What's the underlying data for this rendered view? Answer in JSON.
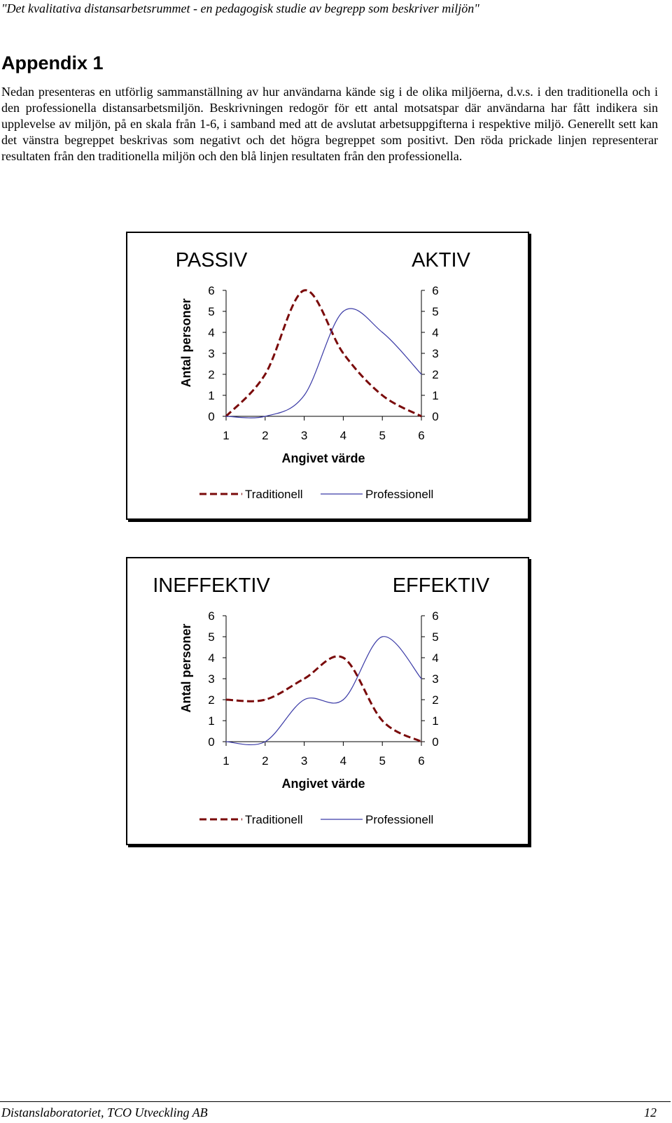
{
  "header": {
    "running_title": "\"Det kvalitativa distansarbetsrummet - en pedagogisk studie av begrepp som beskriver miljön\""
  },
  "heading": "Appendix 1",
  "paragraph": "Nedan presenteras en utförlig sammanställning av hur användarna kände sig i de olika miljöerna, d.v.s. i den traditionella och i den professionella distansarbetsmiljön. Beskrivningen redogör för ett antal motsatspar där användarna har fått indikera sin upplevelse av miljön, på en skala från 1-6, i samband med att de avslutat arbetsuppgifterna i respektive miljö. Generellt sett kan det vänstra begreppet beskrivas som negativt och det högra begreppet som positivt. Den röda prickade linjen representerar resultaten från den traditionella miljön och den blå linjen resultaten från den professionella.",
  "colors": {
    "traditional": "#7a0a0a",
    "professional": "#3a3aa6",
    "axis": "#000000"
  },
  "chart_data": [
    {
      "type": "line",
      "left_title": "PASSIV",
      "right_title": "AKTIV",
      "ylabel": "Antal personer",
      "xlabel": "Angivet värde",
      "x": [
        1,
        2,
        3,
        4,
        5,
        6
      ],
      "xlim": [
        1,
        6
      ],
      "ylim": [
        0,
        6
      ],
      "y_ticks": [
        "0",
        "1",
        "2",
        "3",
        "4",
        "5",
        "6"
      ],
      "x_ticks": [
        "1",
        "2",
        "3",
        "4",
        "5",
        "6"
      ],
      "y_axis_sides": "left and right",
      "smoothed": true,
      "legend": "bottom",
      "series": [
        {
          "name": "Traditionell",
          "style": "dashed",
          "color": "#7a0a0a",
          "values": [
            0,
            2,
            6,
            3,
            1,
            0
          ]
        },
        {
          "name": "Professionell",
          "style": "solid",
          "color": "#3a3aa6",
          "values": [
            0,
            0,
            1,
            5,
            4,
            2
          ]
        }
      ]
    },
    {
      "type": "line",
      "left_title": "INEFFEKTIV",
      "right_title": "EFFEKTIV",
      "ylabel": "Antal personer",
      "xlabel": "Angivet värde",
      "x": [
        1,
        2,
        3,
        4,
        5,
        6
      ],
      "xlim": [
        1,
        6
      ],
      "ylim": [
        0,
        6
      ],
      "y_ticks": [
        "0",
        "1",
        "2",
        "3",
        "4",
        "5",
        "6"
      ],
      "x_ticks": [
        "1",
        "2",
        "3",
        "4",
        "5",
        "6"
      ],
      "y_axis_sides": "left and right",
      "smoothed": true,
      "legend": "bottom",
      "series": [
        {
          "name": "Traditionell",
          "style": "dashed",
          "color": "#7a0a0a",
          "values": [
            2,
            2,
            3,
            4,
            1,
            0
          ]
        },
        {
          "name": "Professionell",
          "style": "solid",
          "color": "#3a3aa6",
          "values": [
            0,
            0,
            2,
            2,
            5,
            3
          ]
        }
      ]
    }
  ],
  "footer": {
    "left": "Distanslaboratoriet, TCO Utveckling AB",
    "page_number": "12"
  }
}
